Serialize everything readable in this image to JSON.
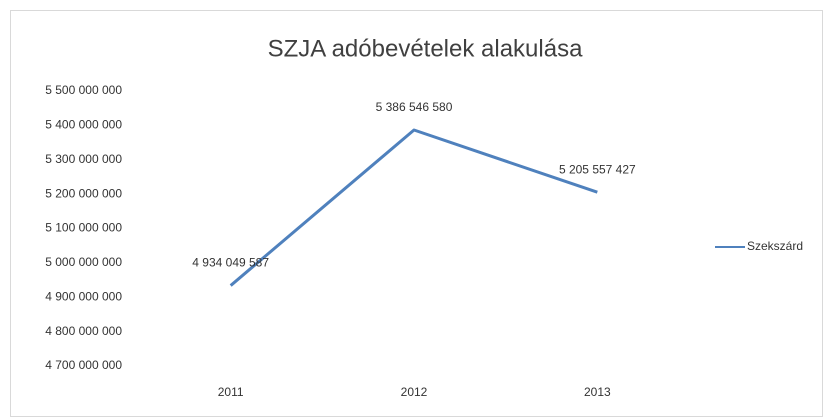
{
  "chart_data": {
    "type": "line",
    "title": "SZJA adóbevételek alakulása",
    "categories": [
      "2011",
      "2012",
      "2013"
    ],
    "series": [
      {
        "name": "Szekszárd",
        "color": "#4f81bd",
        "values": [
          4934049587,
          5386546580,
          5205557427
        ],
        "value_labels": [
          "4 934 049 587",
          "5 386 546 580",
          "5 205 557 427"
        ]
      }
    ],
    "ylim": [
      4700000000,
      5500000000
    ],
    "yticks": [
      {
        "value": 4700000000,
        "label": "4 700 000 000"
      },
      {
        "value": 4800000000,
        "label": "4 800 000 000"
      },
      {
        "value": 4900000000,
        "label": "4 900 000 000"
      },
      {
        "value": 5000000000,
        "label": "5 000 000 000"
      },
      {
        "value": 5100000000,
        "label": "5 100 000 000"
      },
      {
        "value": 5200000000,
        "label": "5 200 000 000"
      },
      {
        "value": 5300000000,
        "label": "5 300 000 000"
      },
      {
        "value": 5400000000,
        "label": "5 400 000 000"
      },
      {
        "value": 5500000000,
        "label": "5 500 000 000"
      }
    ],
    "grid": false,
    "legend": "right"
  }
}
